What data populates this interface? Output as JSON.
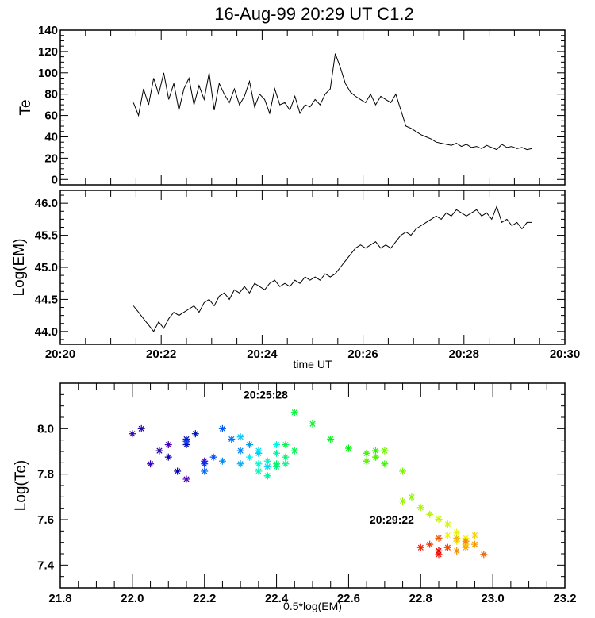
{
  "title": "16-Aug-99   20:29 UT    C1.2",
  "chart_data": [
    {
      "type": "line",
      "ylabel": "Te",
      "xlabel": "",
      "xlim": [
        20,
        30
      ],
      "ylim": [
        -5,
        140
      ],
      "xticks": [
        "20:20",
        "20:22",
        "20:24",
        "20:26",
        "20:28",
        "20:30"
      ],
      "yticks": [
        "0",
        "20",
        "40",
        "60",
        "80",
        "100",
        "120",
        "140"
      ],
      "x_start_minutes": 21.45,
      "x_step_minutes": 0.1,
      "values": [
        72,
        60,
        85,
        70,
        95,
        80,
        100,
        75,
        90,
        65,
        85,
        95,
        70,
        88,
        75,
        100,
        65,
        90,
        80,
        72,
        85,
        70,
        78,
        92,
        68,
        80,
        75,
        62,
        85,
        70,
        72,
        65,
        78,
        62,
        70,
        68,
        75,
        70,
        80,
        85,
        118,
        105,
        90,
        82,
        78,
        75,
        72,
        80,
        70,
        78,
        75,
        72,
        80,
        65,
        50,
        48,
        45,
        42,
        40,
        38,
        35,
        34,
        33,
        32,
        34,
        31,
        33,
        30,
        31,
        29,
        32,
        30,
        28,
        33,
        30,
        31,
        29,
        30,
        28,
        29
      ]
    },
    {
      "type": "line",
      "ylabel": "Log(EM)",
      "xlabel": "time UT",
      "xlim": [
        20,
        30
      ],
      "ylim": [
        43.8,
        46.2
      ],
      "xticks": [
        "20:20",
        "20:22",
        "20:24",
        "20:26",
        "20:28",
        "20:30"
      ],
      "yticks": [
        "44.0",
        "44.5",
        "45.0",
        "45.5",
        "46.0"
      ],
      "values": [
        44.4,
        44.3,
        44.2,
        44.1,
        44.0,
        44.15,
        44.05,
        44.2,
        44.3,
        44.25,
        44.3,
        44.35,
        44.4,
        44.3,
        44.45,
        44.5,
        44.4,
        44.55,
        44.6,
        44.5,
        44.65,
        44.6,
        44.7,
        44.6,
        44.75,
        44.7,
        44.65,
        44.75,
        44.8,
        44.7,
        44.75,
        44.7,
        44.8,
        44.75,
        44.85,
        44.8,
        44.85,
        44.8,
        44.9,
        44.85,
        44.9,
        45.0,
        45.1,
        45.2,
        45.3,
        45.35,
        45.3,
        45.35,
        45.4,
        45.3,
        45.35,
        45.3,
        45.4,
        45.5,
        45.55,
        45.5,
        45.6,
        45.65,
        45.7,
        45.75,
        45.8,
        45.75,
        45.85,
        45.8,
        45.9,
        45.85,
        45.8,
        45.85,
        45.9,
        45.8,
        45.85,
        45.75,
        45.95,
        45.7,
        45.75,
        45.65,
        45.7,
        45.6,
        45.7,
        45.7
      ]
    },
    {
      "type": "scatter",
      "ylabel": "Log(Te)",
      "xlabel": "0.5*log(EM)",
      "xlim": [
        21.8,
        23.2
      ],
      "ylim": [
        7.3,
        8.2
      ],
      "xticks": [
        "21.8",
        "22.0",
        "22.2",
        "22.4",
        "22.6",
        "22.8",
        "23.0",
        "23.2"
      ],
      "yticks": [
        "7.4",
        "7.6",
        "7.8",
        "8.0"
      ],
      "x_from": "0.5 * Log(EM)",
      "y_from": "log10(Te * 1e6)",
      "color_scale": "rainbow by time (purple to red)",
      "annotations": [
        {
          "text": "20:25:28",
          "x": 22.37,
          "y": 8.15
        },
        {
          "text": "20:29:22",
          "x": 22.72,
          "y": 7.6
        }
      ]
    }
  ]
}
